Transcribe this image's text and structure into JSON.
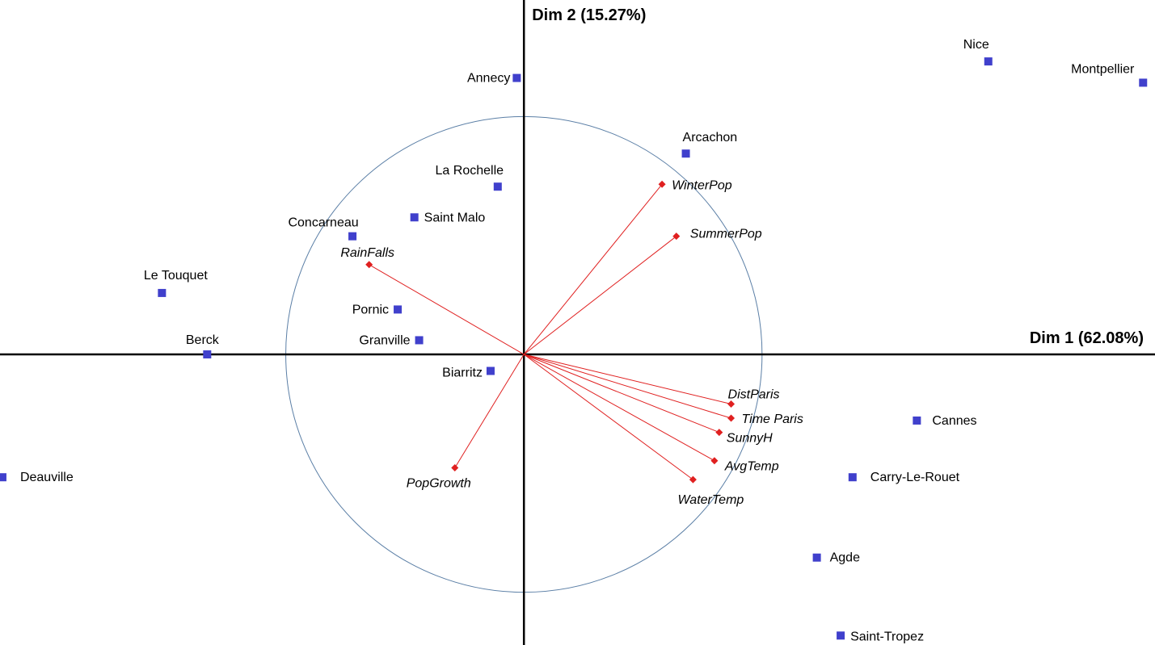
{
  "chart_data": {
    "type": "scatter",
    "subtype": "pca-biplot",
    "xlabel": "Dim 1 (62.08%)",
    "ylabel": "Dim 2 (15.27%)",
    "xlim": [
      -2.2,
      2.65
    ],
    "ylim": [
      -1.23,
      1.5
    ],
    "correlation_circle": true,
    "colors": {
      "observations": "#4040cc",
      "variables": "#e02020",
      "circle": "#5b7fa6",
      "axes": "#000000"
    },
    "observations": [
      {
        "name": "Annecy",
        "x": -0.03,
        "y": 1.17
      },
      {
        "name": "Nice",
        "x": 1.95,
        "y": 1.24
      },
      {
        "name": "Montpellier",
        "x": 2.6,
        "y": 1.15
      },
      {
        "name": "Arcachon",
        "x": 0.68,
        "y": 0.85
      },
      {
        "name": "La Rochelle",
        "x": -0.11,
        "y": 0.71
      },
      {
        "name": "Saint Malo",
        "x": -0.46,
        "y": 0.58
      },
      {
        "name": "Concarneau",
        "x": -0.72,
        "y": 0.5
      },
      {
        "name": "Le Touquet",
        "x": -1.52,
        "y": 0.26
      },
      {
        "name": "Pornic",
        "x": -0.53,
        "y": 0.19
      },
      {
        "name": "Granville",
        "x": -0.44,
        "y": 0.06
      },
      {
        "name": "Berck",
        "x": -1.33,
        "y": 0.0
      },
      {
        "name": "Biarritz",
        "x": -0.14,
        "y": -0.07
      },
      {
        "name": "Cannes",
        "x": 1.65,
        "y": -0.28
      },
      {
        "name": "Carry-Le-Rouet",
        "x": 1.38,
        "y": -0.52
      },
      {
        "name": "Deauville",
        "x": -2.19,
        "y": -0.52
      },
      {
        "name": "Agde",
        "x": 1.23,
        "y": -0.86
      },
      {
        "name": "Saint-Tropez",
        "x": 1.33,
        "y": -1.19
      }
    ],
    "variables": [
      {
        "name": "WinterPop",
        "x": 0.58,
        "y": 0.72
      },
      {
        "name": "SummerPop",
        "x": 0.64,
        "y": 0.5
      },
      {
        "name": "RainFalls",
        "x": -0.65,
        "y": 0.38
      },
      {
        "name": "DistParis",
        "x": 0.87,
        "y": -0.21
      },
      {
        "name": "Time Paris",
        "x": 0.87,
        "y": -0.27
      },
      {
        "name": "SunnyH",
        "x": 0.82,
        "y": -0.33
      },
      {
        "name": "AvgTemp",
        "x": 0.8,
        "y": -0.45
      },
      {
        "name": "WaterTemp",
        "x": 0.71,
        "y": -0.53
      },
      {
        "name": "PopGrowth",
        "x": -0.29,
        "y": -0.48
      }
    ]
  }
}
